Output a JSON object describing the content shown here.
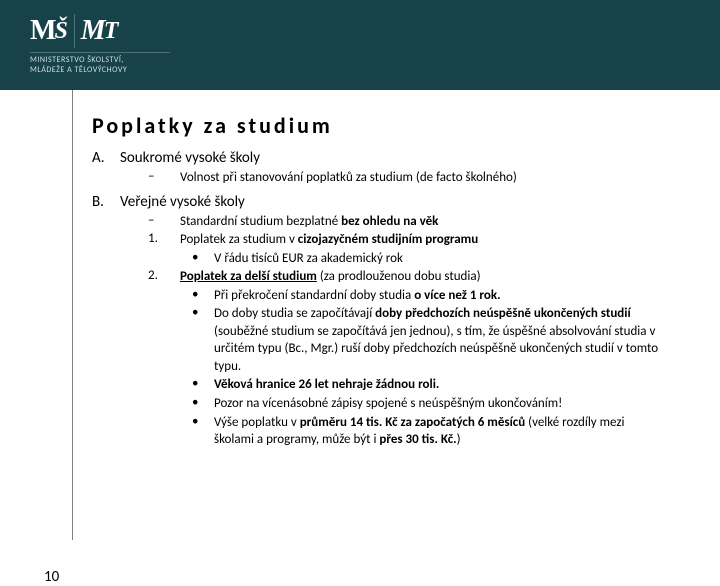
{
  "header": {
    "ministry_line1": "MINISTERSTVO ŠKOLSTVÍ,",
    "ministry_line2": "MLÁDEŽE A TĚLOVÝCHOVY"
  },
  "title": "Poplatky za studium",
  "sectionA": {
    "letter": "A.",
    "title": "Soukromé vysoké školy",
    "item1": "Volnost při stanovování poplatků za studium (de facto školného)"
  },
  "sectionB": {
    "letter": "B.",
    "title": "Veřejné vysoké školy",
    "dash_pre": "Standardní studium bezplatné ",
    "dash_bold": "bez ohledu na věk",
    "n1_pre": "Poplatek za studium v ",
    "n1_bold": "cizojazyčném studijním programu",
    "n1_b1": "V řádu tisíců EUR za akademický rok",
    "n2_bold": "Poplatek za delší studium",
    "n2_post": " (za prodlouženou dobu studia)",
    "n2_b1_pre": "Při překročení standardní doby studia ",
    "n2_b1_bold": "o více než 1 rok.",
    "n2_b2_pre": "Do doby studia se započítávají ",
    "n2_b2_bold": "doby předchozích neúspěšně ukončených studií",
    "n2_b2_post": " (souběžné studium se započítává jen jednou), s tím, že úspěšné absolvování studia v určitém typu (Bc., Mgr.) ruší doby předchozích neúspěšně ukončených studií v tomto typu.",
    "n2_b3_bold": "Věková hranice 26 let nehraje žádnou roli.",
    "n2_b4": "Pozor na vícenásobné zápisy spojené s neúspěšným ukončováním!",
    "n2_b5_pre": "Výše poplatku v ",
    "n2_b5_bold1": "průměru 14 tis. Kč za započatých 6 měsíců",
    "n2_b5_mid": " (velké rozdíly mezi školami a programy, může být i ",
    "n2_b5_bold2": "přes 30 tis. Kč.",
    "n2_b5_post": ")"
  },
  "page_number": "10",
  "colors": {
    "header_bg": "#17424a",
    "vline": "#808080",
    "text": "#000000"
  }
}
